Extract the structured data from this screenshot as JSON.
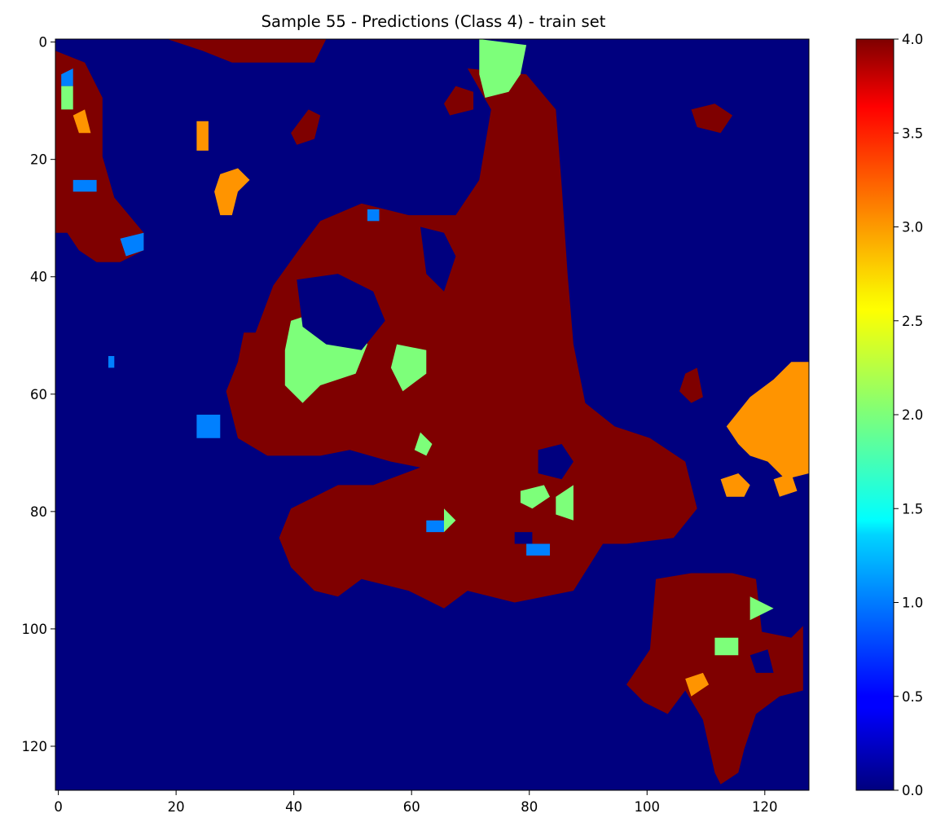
{
  "chart_data": {
    "type": "heatmap",
    "title": "Sample 55 - Predictions (Class 4) - train set",
    "xlabel": "",
    "ylabel": "",
    "grid": false,
    "colormap": "jet",
    "value_range": [
      0,
      4
    ],
    "grid_size": [
      128,
      128
    ],
    "x_ticks": [
      0,
      20,
      40,
      60,
      80,
      100,
      120
    ],
    "y_ticks": [
      0,
      20,
      40,
      60,
      80,
      100,
      120
    ],
    "colorbar_ticks": [
      "0.0",
      "0.5",
      "1.0",
      "1.5",
      "2.0",
      "2.5",
      "3.0",
      "3.5",
      "4.0"
    ],
    "class_colors": {
      "0": "#00007f",
      "1": "#0080ff",
      "2": "#7dff7a",
      "3": "#ff9400",
      "4": "#7f0000"
    },
    "background_class": 0,
    "regions": [
      {
        "class": 4,
        "points": [
          [
            34,
            50
          ],
          [
            37,
            42
          ],
          [
            42,
            35
          ],
          [
            45,
            31
          ],
          [
            52,
            28
          ],
          [
            60,
            30
          ],
          [
            68,
            30
          ],
          [
            72,
            24
          ],
          [
            74,
            12
          ],
          [
            70,
            5
          ],
          [
            80,
            6
          ],
          [
            85,
            12
          ],
          [
            86,
            25
          ],
          [
            87,
            40
          ],
          [
            88,
            52
          ],
          [
            90,
            62
          ],
          [
            95,
            66
          ],
          [
            101,
            68
          ],
          [
            107,
            72
          ],
          [
            109,
            80
          ],
          [
            105,
            85
          ],
          [
            97,
            86
          ],
          [
            93,
            86
          ],
          [
            88,
            94
          ],
          [
            78,
            96
          ],
          [
            70,
            94
          ],
          [
            66,
            97
          ],
          [
            60,
            94
          ],
          [
            52,
            92
          ],
          [
            48,
            95
          ],
          [
            44,
            94
          ],
          [
            40,
            90
          ],
          [
            38,
            85
          ],
          [
            40,
            80
          ],
          [
            48,
            76
          ],
          [
            54,
            76
          ],
          [
            62,
            73
          ],
          [
            57,
            72
          ],
          [
            50,
            70
          ],
          [
            45,
            71
          ],
          [
            36,
            71
          ],
          [
            31,
            68
          ],
          [
            30,
            64
          ],
          [
            29,
            60
          ],
          [
            31,
            55
          ],
          [
            32,
            50
          ]
        ]
      },
      {
        "class": 4,
        "points": [
          [
            102,
            92
          ],
          [
            108,
            91
          ],
          [
            115,
            91
          ],
          [
            119,
            92
          ],
          [
            120,
            101
          ],
          [
            125,
            102
          ],
          [
            127,
            100
          ],
          [
            127,
            111
          ],
          [
            123,
            112
          ],
          [
            119,
            115
          ],
          [
            117,
            121
          ],
          [
            116,
            125
          ],
          [
            113,
            127
          ],
          [
            112,
            125
          ],
          [
            110,
            116
          ],
          [
            107,
            111
          ],
          [
            104,
            115
          ],
          [
            100,
            113
          ],
          [
            97,
            110
          ],
          [
            101,
            104
          ]
        ]
      },
      {
        "class": 4,
        "points": [
          [
            0,
            2
          ],
          [
            5,
            4
          ],
          [
            8,
            10
          ],
          [
            8,
            20
          ],
          [
            10,
            27
          ],
          [
            15,
            33
          ],
          [
            15,
            36
          ],
          [
            11,
            38
          ],
          [
            7,
            38
          ],
          [
            4,
            36
          ],
          [
            2,
            33
          ],
          [
            0,
            33
          ]
        ]
      },
      {
        "class": 4,
        "points": [
          [
            19,
            0
          ],
          [
            46,
            0
          ],
          [
            44,
            4
          ],
          [
            30,
            4
          ],
          [
            25,
            2
          ]
        ]
      },
      {
        "class": 4,
        "points": [
          [
            68,
            8
          ],
          [
            71,
            9
          ],
          [
            71,
            12
          ],
          [
            67,
            13
          ],
          [
            66,
            11
          ]
        ]
      },
      {
        "class": 4,
        "points": [
          [
            108,
            12
          ],
          [
            112,
            11
          ],
          [
            115,
            13
          ],
          [
            113,
            16
          ],
          [
            109,
            15
          ]
        ]
      },
      {
        "class": 4,
        "points": [
          [
            107,
            57
          ],
          [
            109,
            56
          ],
          [
            110,
            61
          ],
          [
            108,
            62
          ],
          [
            106,
            60
          ]
        ]
      },
      {
        "class": 4,
        "points": [
          [
            40,
            16
          ],
          [
            43,
            12
          ],
          [
            45,
            13
          ],
          [
            44,
            17
          ],
          [
            41,
            18
          ]
        ]
      },
      {
        "class": 2,
        "points": [
          [
            40,
            48
          ],
          [
            46,
            46
          ],
          [
            51,
            47
          ],
          [
            53,
            52
          ],
          [
            51,
            57
          ],
          [
            45,
            59
          ],
          [
            42,
            62
          ],
          [
            39,
            59
          ],
          [
            39,
            53
          ]
        ]
      },
      {
        "class": 2,
        "points": [
          [
            58,
            52
          ],
          [
            63,
            53
          ],
          [
            63,
            57
          ],
          [
            59,
            60
          ],
          [
            57,
            56
          ]
        ]
      },
      {
        "class": 2,
        "points": [
          [
            72,
            0
          ],
          [
            80,
            1
          ],
          [
            79,
            6
          ],
          [
            77,
            9
          ],
          [
            73,
            10
          ],
          [
            72,
            6
          ]
        ]
      },
      {
        "class": 2,
        "points": [
          [
            118,
            95
          ],
          [
            122,
            97
          ],
          [
            118,
            99
          ]
        ]
      },
      {
        "class": 2,
        "points": [
          [
            85,
            78
          ],
          [
            88,
            76
          ],
          [
            88,
            82
          ],
          [
            85,
            81
          ]
        ]
      },
      {
        "class": 2,
        "points": [
          [
            79,
            77
          ],
          [
            83,
            76
          ],
          [
            84,
            78
          ],
          [
            81,
            80
          ],
          [
            79,
            79
          ]
        ]
      },
      {
        "class": 2,
        "points": [
          [
            112,
            102
          ],
          [
            116,
            102
          ],
          [
            116,
            105
          ],
          [
            112,
            105
          ]
        ]
      },
      {
        "class": 2,
        "points": [
          [
            66,
            80
          ],
          [
            68,
            82
          ],
          [
            66,
            84
          ]
        ]
      },
      {
        "class": 2,
        "points": [
          [
            1,
            8
          ],
          [
            3,
            8
          ],
          [
            3,
            12
          ],
          [
            1,
            12
          ]
        ]
      },
      {
        "class": 2,
        "points": [
          [
            62,
            67
          ],
          [
            64,
            69
          ],
          [
            63,
            71
          ],
          [
            61,
            70
          ]
        ]
      },
      {
        "class": 3,
        "points": [
          [
            118,
            61
          ],
          [
            122,
            58
          ],
          [
            125,
            55
          ],
          [
            128,
            55
          ],
          [
            128,
            74
          ],
          [
            124,
            75
          ],
          [
            121,
            72
          ],
          [
            118,
            71
          ],
          [
            116,
            69
          ],
          [
            114,
            66
          ]
        ]
      },
      {
        "class": 3,
        "points": [
          [
            113,
            75
          ],
          [
            116,
            74
          ],
          [
            118,
            76
          ],
          [
            117,
            78
          ],
          [
            114,
            78
          ]
        ]
      },
      {
        "class": 3,
        "points": [
          [
            122,
            75
          ],
          [
            125,
            74
          ],
          [
            126,
            77
          ],
          [
            123,
            78
          ]
        ]
      },
      {
        "class": 3,
        "points": [
          [
            28,
            23
          ],
          [
            31,
            22
          ],
          [
            33,
            24
          ],
          [
            31,
            26
          ],
          [
            30,
            30
          ],
          [
            28,
            30
          ],
          [
            27,
            26
          ]
        ]
      },
      {
        "class": 3,
        "points": [
          [
            107,
            109
          ],
          [
            110,
            108
          ],
          [
            111,
            110
          ],
          [
            108,
            112
          ]
        ]
      },
      {
        "class": 3,
        "points": [
          [
            24,
            14
          ],
          [
            26,
            14
          ],
          [
            26,
            19
          ],
          [
            24,
            19
          ]
        ]
      },
      {
        "class": 3,
        "points": [
          [
            3,
            13
          ],
          [
            5,
            12
          ],
          [
            6,
            16
          ],
          [
            4,
            16
          ]
        ]
      },
      {
        "class": 1,
        "points": [
          [
            24,
            64
          ],
          [
            28,
            64
          ],
          [
            28,
            68
          ],
          [
            24,
            68
          ]
        ]
      },
      {
        "class": 1,
        "points": [
          [
            3,
            24
          ],
          [
            7,
            24
          ],
          [
            7,
            26
          ],
          [
            3,
            26
          ]
        ]
      },
      {
        "class": 1,
        "points": [
          [
            11,
            34
          ],
          [
            15,
            33
          ],
          [
            15,
            36
          ],
          [
            12,
            37
          ]
        ]
      },
      {
        "class": 1,
        "points": [
          [
            1,
            6
          ],
          [
            3,
            5
          ],
          [
            3,
            8
          ],
          [
            1,
            8
          ]
        ]
      },
      {
        "class": 1,
        "points": [
          [
            9,
            54
          ],
          [
            10,
            54
          ],
          [
            10,
            56
          ],
          [
            9,
            56
          ]
        ]
      },
      {
        "class": 1,
        "points": [
          [
            53,
            29
          ],
          [
            55,
            29
          ],
          [
            55,
            31
          ],
          [
            53,
            31
          ]
        ]
      },
      {
        "class": 1,
        "points": [
          [
            80,
            86
          ],
          [
            84,
            86
          ],
          [
            84,
            88
          ],
          [
            80,
            88
          ]
        ]
      },
      {
        "class": 1,
        "points": [
          [
            63,
            82
          ],
          [
            66,
            82
          ],
          [
            66,
            84
          ],
          [
            63,
            84
          ]
        ]
      },
      {
        "class": 0,
        "points": [
          [
            41,
            41
          ],
          [
            48,
            40
          ],
          [
            54,
            43
          ],
          [
            56,
            48
          ],
          [
            52,
            53
          ],
          [
            46,
            52
          ],
          [
            42,
            49
          ]
        ]
      },
      {
        "class": 0,
        "points": [
          [
            82,
            70
          ],
          [
            86,
            69
          ],
          [
            88,
            72
          ],
          [
            86,
            75
          ],
          [
            82,
            74
          ]
        ]
      },
      {
        "class": 0,
        "points": [
          [
            78,
            84
          ],
          [
            81,
            84
          ],
          [
            81,
            86
          ],
          [
            78,
            86
          ]
        ]
      },
      {
        "class": 0,
        "points": [
          [
            62,
            32
          ],
          [
            66,
            33
          ],
          [
            68,
            37
          ],
          [
            66,
            43
          ],
          [
            63,
            40
          ]
        ]
      },
      {
        "class": 0,
        "points": [
          [
            118,
            105
          ],
          [
            121,
            104
          ],
          [
            122,
            108
          ],
          [
            119,
            108
          ]
        ]
      }
    ]
  }
}
